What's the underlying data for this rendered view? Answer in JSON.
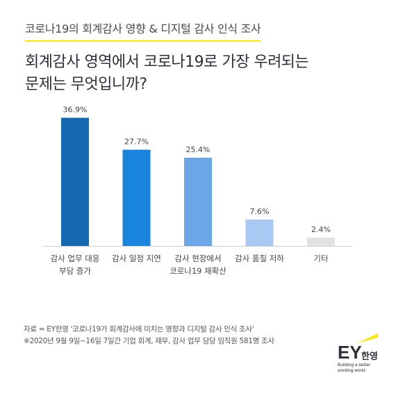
{
  "header": {
    "subtitle": "코로나19의 회계감사 영향 & 디지털 감사 인식 조사",
    "title": "회계감사 영역에서 코로나19로 가장 우려되는\n문제는 무엇입니까?"
  },
  "chart_data": {
    "type": "bar",
    "categories": [
      [
        "감사 업무 대응",
        "부담 증가"
      ],
      [
        "감사 일정 지연"
      ],
      [
        "감사 현장에서",
        "코로나19 재확산"
      ],
      [
        "감사 품질 저하"
      ],
      [
        "기타"
      ]
    ],
    "values": [
      36.9,
      27.7,
      25.4,
      7.6,
      2.4
    ],
    "value_labels": [
      "36.9%",
      "27.7%",
      "25.4%",
      "7.6%",
      "2.4%"
    ],
    "colors": [
      "#1667b2",
      "#1a85dc",
      "#6aa6e8",
      "#a9c9f2",
      "#e2e2e2"
    ],
    "ylim": [
      0,
      40
    ]
  },
  "footer": {
    "source": "자료 = EY한영 '코로나19가 회계감사에 미치는 영향과 디지털 감사 인식 조사'",
    "note": "※2020년 9월 9일~16일 7일간 기업 회계, 재무, 감사 업무 담당 임직원 581명 조사"
  },
  "logo": {
    "ey": "EY",
    "korean": "한영",
    "tagline": "Building a better\nworking world",
    "beam_color": "#ffe600"
  }
}
